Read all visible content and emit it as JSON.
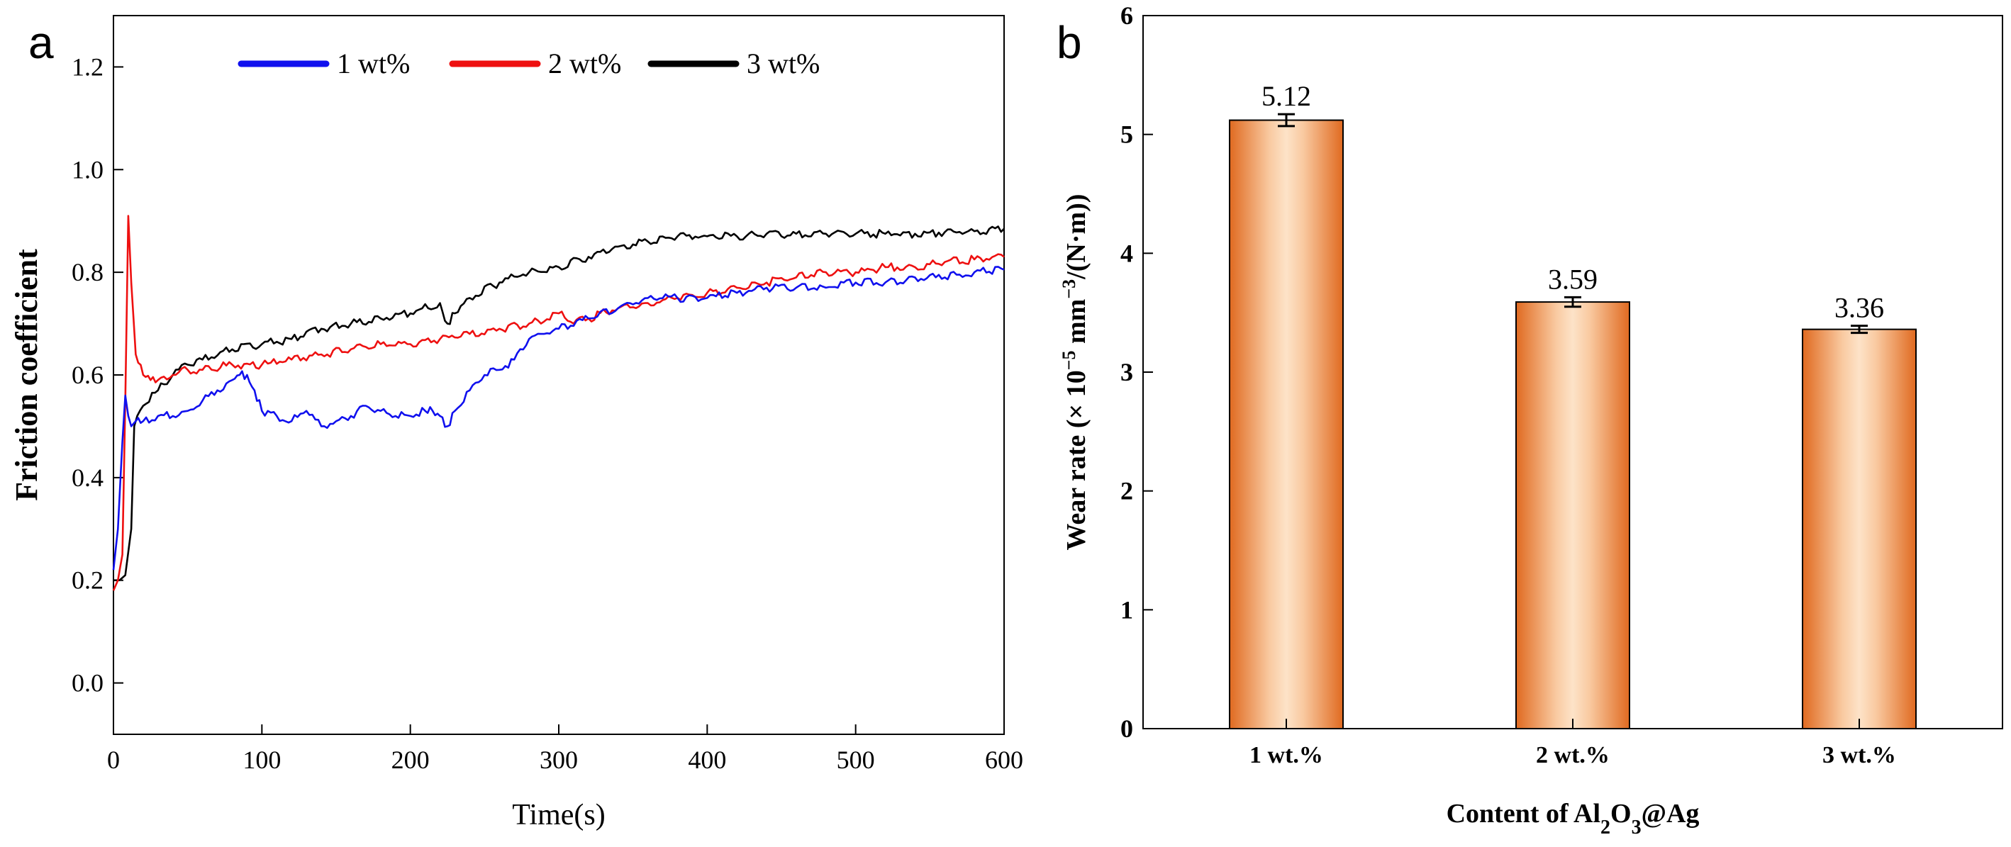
{
  "panels": {
    "a": {
      "label": "a"
    },
    "b": {
      "label": "b"
    }
  },
  "chart_data": [
    {
      "type": "line",
      "panel": "a",
      "xlabel": "Time(s)",
      "ylabel": "Friction coefficient",
      "xlim": [
        0,
        600
      ],
      "ylim": [
        -0.1,
        1.3
      ],
      "xticks": [
        "0",
        "100",
        "200",
        "300",
        "400",
        "500",
        "600"
      ],
      "yticks": [
        "0.0",
        "0.2",
        "0.4",
        "0.6",
        "0.8",
        "1.0",
        "1.2"
      ],
      "legend_position": "top",
      "series": [
        {
          "name": "1 wt%",
          "color": "#1010ee",
          "x": [
            0,
            3,
            6,
            8,
            10,
            12,
            15,
            20,
            30,
            40,
            50,
            60,
            70,
            80,
            85,
            90,
            95,
            100,
            110,
            120,
            130,
            140,
            150,
            160,
            170,
            180,
            190,
            200,
            210,
            215,
            220,
            225,
            230,
            240,
            250,
            260,
            270,
            280,
            290,
            300,
            320,
            340,
            360,
            380,
            400,
            420,
            440,
            460,
            480,
            500,
            520,
            540,
            560,
            580,
            600
          ],
          "y": [
            0.22,
            0.3,
            0.47,
            0.56,
            0.52,
            0.5,
            0.51,
            0.51,
            0.52,
            0.52,
            0.53,
            0.55,
            0.57,
            0.59,
            0.6,
            0.6,
            0.57,
            0.53,
            0.52,
            0.51,
            0.53,
            0.5,
            0.51,
            0.52,
            0.54,
            0.53,
            0.52,
            0.52,
            0.53,
            0.53,
            0.52,
            0.5,
            0.53,
            0.57,
            0.6,
            0.61,
            0.63,
            0.67,
            0.68,
            0.69,
            0.71,
            0.73,
            0.75,
            0.75,
            0.75,
            0.76,
            0.77,
            0.77,
            0.77,
            0.78,
            0.78,
            0.79,
            0.79,
            0.8,
            0.805
          ]
        },
        {
          "name": "2 wt%",
          "color": "#ee1010",
          "x": [
            0,
            3,
            6,
            8,
            10,
            12,
            15,
            20,
            25,
            30,
            40,
            50,
            60,
            80,
            100,
            120,
            140,
            160,
            180,
            200,
            220,
            240,
            260,
            280,
            300,
            310,
            320,
            340,
            360,
            380,
            400,
            420,
            440,
            460,
            480,
            500,
            520,
            540,
            560,
            580,
            600
          ],
          "y": [
            0.18,
            0.2,
            0.25,
            0.55,
            0.91,
            0.78,
            0.64,
            0.6,
            0.59,
            0.59,
            0.6,
            0.61,
            0.61,
            0.62,
            0.62,
            0.63,
            0.64,
            0.65,
            0.66,
            0.66,
            0.67,
            0.68,
            0.69,
            0.7,
            0.72,
            0.7,
            0.71,
            0.73,
            0.74,
            0.75,
            0.76,
            0.77,
            0.78,
            0.79,
            0.8,
            0.8,
            0.81,
            0.81,
            0.82,
            0.825,
            0.83
          ]
        },
        {
          "name": "3 wt%",
          "color": "#000000",
          "x": [
            0,
            4,
            8,
            12,
            14,
            16,
            20,
            30,
            40,
            50,
            60,
            80,
            100,
            120,
            140,
            160,
            180,
            200,
            220,
            225,
            230,
            240,
            260,
            280,
            300,
            320,
            340,
            360,
            380,
            400,
            420,
            440,
            460,
            480,
            500,
            520,
            540,
            560,
            580,
            600
          ],
          "y": [
            0.2,
            0.2,
            0.21,
            0.3,
            0.5,
            0.52,
            0.54,
            0.57,
            0.6,
            0.62,
            0.63,
            0.65,
            0.66,
            0.67,
            0.69,
            0.7,
            0.71,
            0.72,
            0.74,
            0.7,
            0.72,
            0.75,
            0.78,
            0.8,
            0.81,
            0.83,
            0.85,
            0.86,
            0.87,
            0.87,
            0.87,
            0.875,
            0.875,
            0.875,
            0.875,
            0.875,
            0.875,
            0.878,
            0.88,
            0.885
          ]
        }
      ]
    },
    {
      "type": "bar",
      "panel": "b",
      "xlabel": "Content of Al2O3@Ag",
      "xlabel_parts": {
        "pre": "Content of Al",
        "s1": "2",
        "mid": "O",
        "s2": "3",
        "post": "@Ag"
      },
      "ylabel": "Wear rate (× 10−5 mm−3/(N·m))",
      "ylabel_parts": {
        "pre": "Wear rate  (",
        "mid": "× 10",
        "sup1": "−5",
        "mid2": " mm",
        "sup2": "−3",
        "post": "/(N·m))"
      },
      "ylim": [
        0,
        6
      ],
      "yticks": [
        "0",
        "1",
        "2",
        "3",
        "4",
        "5",
        "6"
      ],
      "categories": [
        "1 wt.%",
        "2 wt.%",
        "3 wt.%"
      ],
      "values": [
        5.12,
        3.59,
        3.36
      ],
      "errors": [
        0.05,
        0.04,
        0.03
      ],
      "data_labels": [
        "5.12",
        "3.59",
        "3.36"
      ],
      "bar_color": "#e8752a"
    }
  ]
}
